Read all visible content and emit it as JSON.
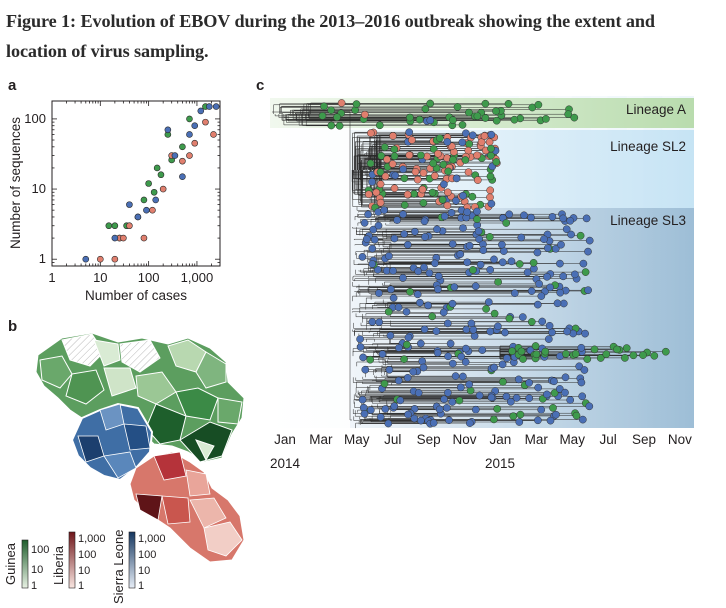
{
  "caption": {
    "figure_label": "Figure 1:",
    "line1": "Evolution of EBOV during the 2013–2016 outbreak showing the extent and",
    "line2": "location of virus sampling."
  },
  "panels": {
    "a": "a",
    "b": "b",
    "c": "c"
  },
  "colors": {
    "guinea": "#3e9a4c",
    "liberia": "#e07f6e",
    "sierra_leone": "#4a6fb5",
    "lineage_a_band": "#cfe6c4",
    "lineage_sl2_band": "#d8edf8",
    "lineage_sl3_band": "#b9d3e6"
  },
  "panel_a": {
    "chart_data": {
      "type": "scatter",
      "xlabel": "Number of cases",
      "ylabel": "Number of sequences",
      "xscale": "log",
      "yscale": "log",
      "xlim": [
        1,
        3000
      ],
      "ylim": [
        0.8,
        180
      ],
      "xticks": [
        "1",
        "10",
        "100",
        "1,000"
      ],
      "xtick_values": [
        1,
        10,
        100,
        1000
      ],
      "yticks": [
        "1",
        "10",
        "100"
      ],
      "ytick_values": [
        1,
        10,
        100
      ],
      "series": [
        {
          "color": "#3e9a4c",
          "points": [
            [
              15,
              3
            ],
            [
              20,
              3
            ],
            [
              25,
              2
            ],
            [
              35,
              3
            ],
            [
              60,
              4
            ],
            [
              80,
              7
            ],
            [
              100,
              12
            ],
            [
              130,
              9
            ],
            [
              150,
              20
            ],
            [
              180,
              16
            ],
            [
              250,
              60
            ],
            [
              300,
              26
            ],
            [
              500,
              40
            ],
            [
              700,
              100
            ],
            [
              1500,
              150
            ]
          ]
        },
        {
          "color": "#e07f6e",
          "points": [
            [
              10,
              1
            ],
            [
              20,
              1
            ],
            [
              25,
              2
            ],
            [
              30,
              2
            ],
            [
              40,
              3
            ],
            [
              80,
              2
            ],
            [
              120,
              5
            ],
            [
              200,
              10
            ],
            [
              300,
              30
            ],
            [
              500,
              25
            ],
            [
              700,
              30
            ],
            [
              900,
              45
            ],
            [
              1500,
              90
            ],
            [
              2200,
              60
            ]
          ]
        },
        {
          "color": "#4a6fb5",
          "points": [
            [
              5,
              1
            ],
            [
              20,
              2
            ],
            [
              40,
              6
            ],
            [
              60,
              4
            ],
            [
              90,
              5
            ],
            [
              140,
              7
            ],
            [
              250,
              70
            ],
            [
              350,
              30
            ],
            [
              500,
              15
            ],
            [
              700,
              60
            ],
            [
              900,
              80
            ],
            [
              1200,
              130
            ],
            [
              1800,
              150
            ],
            [
              2500,
              150
            ]
          ]
        }
      ]
    }
  },
  "panel_b": {
    "legends": [
      {
        "country": "Guinea",
        "ticks": [
          "100",
          "10",
          "1"
        ],
        "colors": [
          "#e8f2e4",
          "#1f5d2c"
        ]
      },
      {
        "country": "Liberia",
        "ticks": [
          "1,000",
          "100",
          "10",
          "1"
        ],
        "colors": [
          "#fae7e2",
          "#6e1519"
        ]
      },
      {
        "country": "Sierra Leone",
        "ticks": [
          "1,000",
          "100",
          "10",
          "1"
        ],
        "colors": [
          "#e7eef7",
          "#14365f"
        ]
      }
    ]
  },
  "panel_c": {
    "chart_data": {
      "type": "phylogenetic-tree",
      "x_tick_labels": [
        "Jan",
        "Mar",
        "May",
        "Jul",
        "Sep",
        "Nov",
        "Jan",
        "Mar",
        "May",
        "Jul",
        "Sep",
        "Nov"
      ],
      "year_labels": [
        "2014",
        "2015"
      ],
      "lineages": [
        "Lineage A",
        "Lineage SL2",
        "Lineage SL3"
      ]
    }
  }
}
